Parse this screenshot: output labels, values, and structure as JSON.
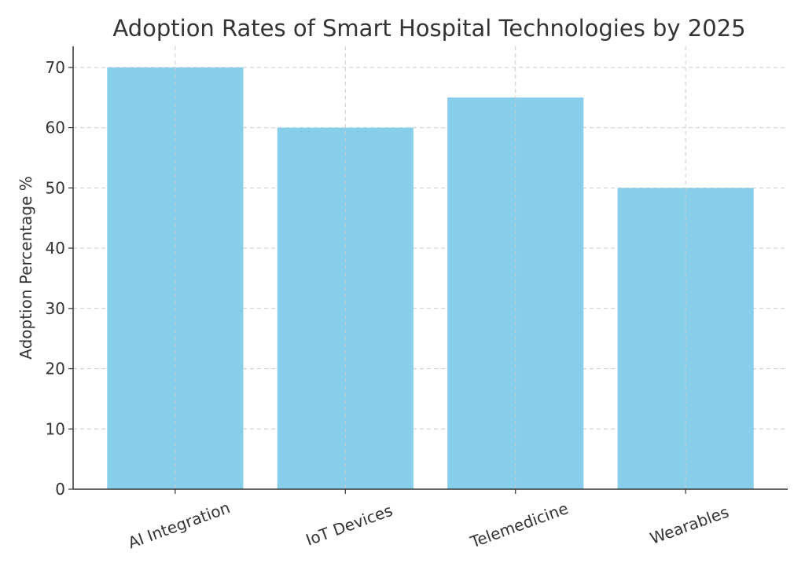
{
  "chart_data": {
    "type": "bar",
    "title": "Adoption Rates of Smart Hospital Technologies by 2025",
    "xlabel": "",
    "ylabel": "Adoption Percentage %",
    "categories": [
      "AI Integration",
      "IoT Devices",
      "Telemedicine",
      "Wearables"
    ],
    "values": [
      70,
      60,
      65,
      50
    ],
    "ylim": [
      0,
      73.5
    ],
    "yticks": [
      0,
      10,
      20,
      30,
      40,
      50,
      60,
      70
    ],
    "grid": true,
    "bar_color": "#87CEEB",
    "xtick_rotation_deg": -20
  }
}
